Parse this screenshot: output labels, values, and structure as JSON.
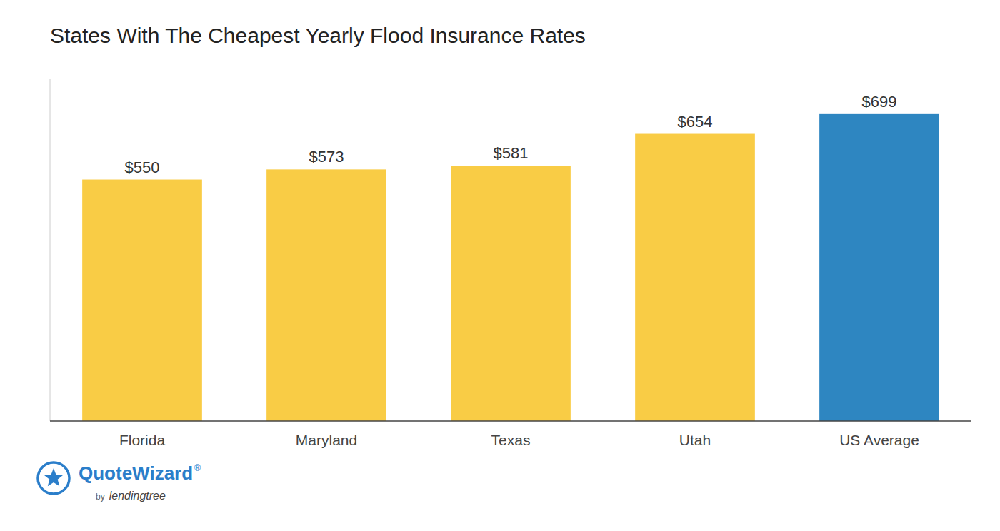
{
  "chart_data": {
    "type": "bar",
    "title": "States With The Cheapest Yearly Flood Insurance Rates",
    "categories": [
      "Florida",
      "Maryland",
      "Texas",
      "Utah",
      "US Average"
    ],
    "values": [
      550,
      573,
      581,
      654,
      699
    ],
    "value_labels": [
      "$550",
      "$573",
      "$581",
      "$654",
      "$699"
    ],
    "colors": [
      "#F9CC45",
      "#F9CC45",
      "#F9CC45",
      "#F9CC45",
      "#2E86C1"
    ],
    "ylim": [
      0,
      780
    ],
    "grid": false,
    "data_labels": true,
    "tick_labels": "x",
    "annotations": [
      "QuoteWizard",
      "®",
      "by",
      "lendingtree"
    ]
  }
}
